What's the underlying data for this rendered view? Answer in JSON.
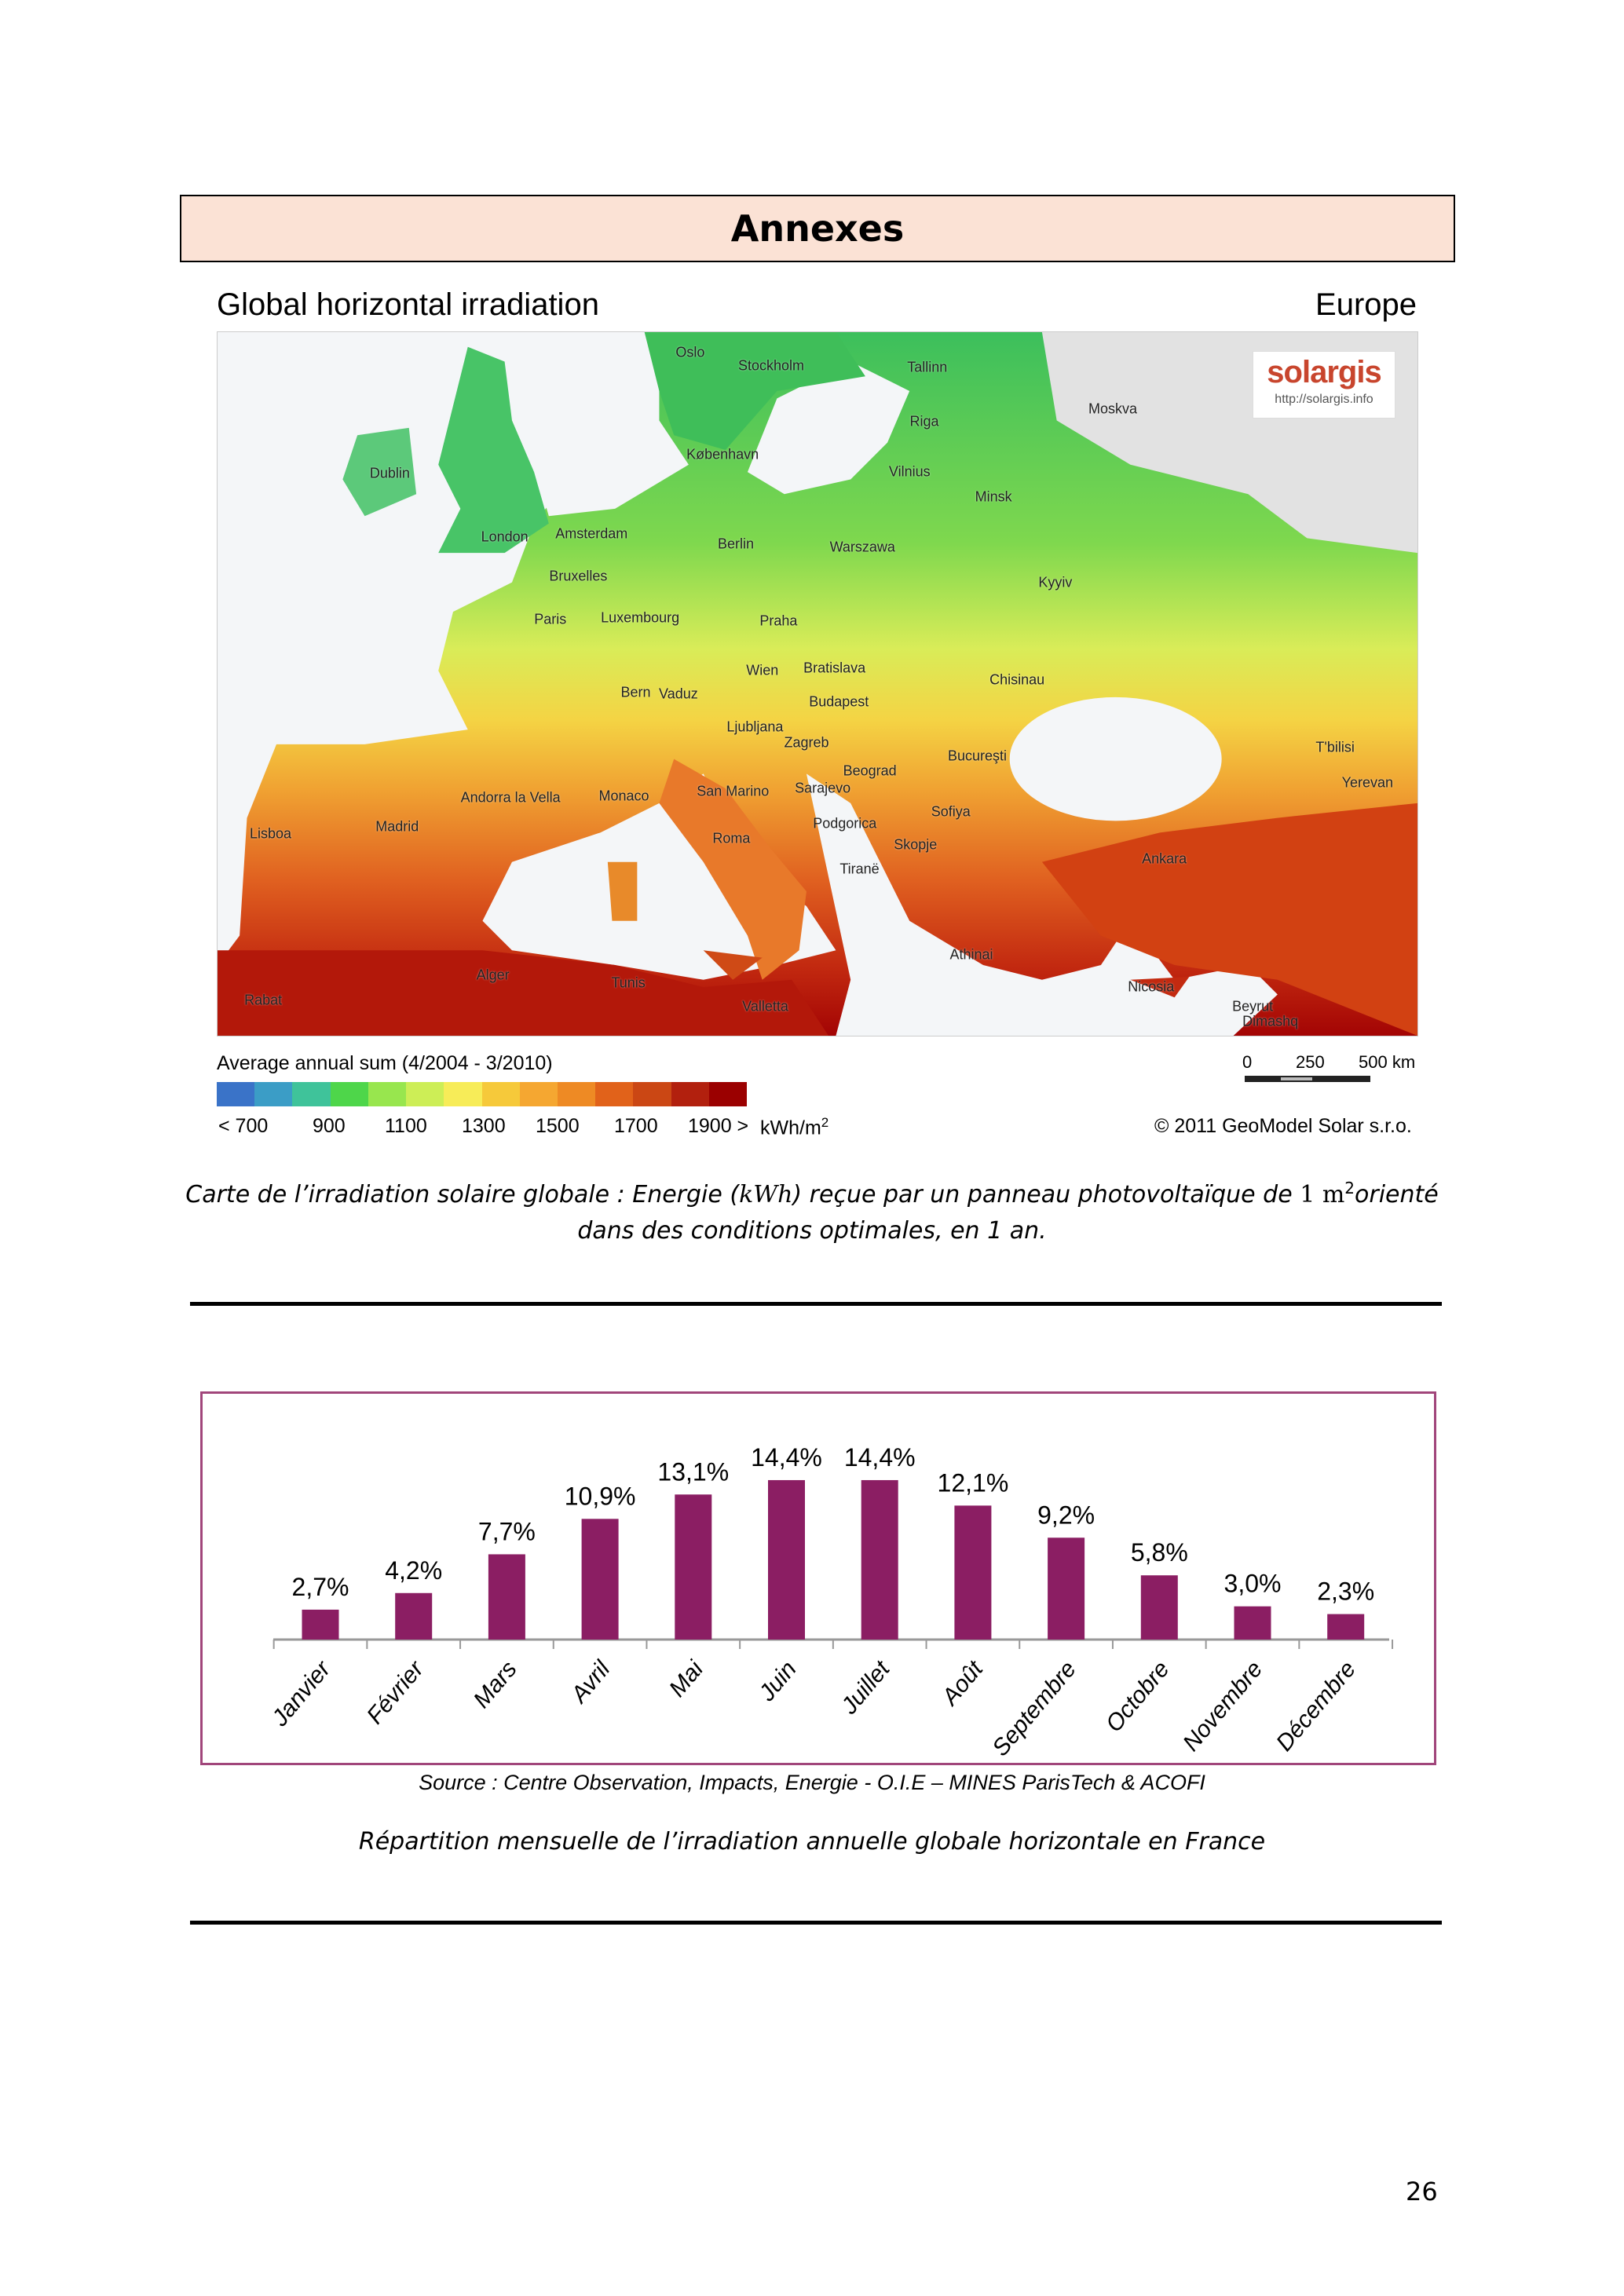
{
  "header": {
    "title": "Annexes"
  },
  "map": {
    "title": "Global horizontal irradiation",
    "region": "Europe",
    "logo_brand": "solargis",
    "logo_url": "http://solargis.info",
    "cities": [
      "Oslo",
      "Stockholm",
      "Tallinn",
      "Moskva",
      "Riga",
      "København",
      "Vilnius",
      "Dublin",
      "Minsk",
      "London",
      "Amsterdam",
      "Berlin",
      "Warszawa",
      "Bruxelles",
      "Kyyiv",
      "Paris",
      "Luxembourg",
      "Praha",
      "Wien",
      "Bratislava",
      "Chisinau",
      "Bern",
      "Vaduz",
      "Budapest",
      "Ljubljana",
      "Zagreb",
      "T'bilisi",
      "Beograd",
      "Bucureşti",
      "San Marino",
      "Sarajevo",
      "Andorra la Vella",
      "Monaco",
      "Yerevan",
      "Madrid",
      "Sofiya",
      "Podgorica",
      "Lisboa",
      "Roma",
      "Skopje",
      "Ankara",
      "Tiranë",
      "Athinai",
      "Alger",
      "Tunis",
      "Nicosia",
      "Beyrut",
      "Dimashq",
      "Rabat",
      "Valletta"
    ],
    "legend_title": "Average annual sum (4/2004 - 3/2010)",
    "legend_colors": [
      "#3a73c8",
      "#3b9dc6",
      "#3fc39a",
      "#4ed64a",
      "#98e64e",
      "#cdee56",
      "#f7ec58",
      "#f6c93a",
      "#f5a731",
      "#ee8a24",
      "#e1621a",
      "#cb4714",
      "#b2200e",
      "#9b0000"
    ],
    "legend_ticks": [
      "< 700",
      "900",
      "1100",
      "1300",
      "1500",
      "1700",
      "1900 >"
    ],
    "legend_unit": "kWh/m",
    "legend_unit_sup": "2",
    "scale_labels": [
      "0",
      "250",
      "500 km"
    ],
    "copyright": "© 2011 GeoModel Solar s.r.o."
  },
  "caption1": {
    "part1": "Carte de l’irradiation solaire globale : Energie (",
    "unit": "kWh",
    "part2": ") reçue par un panneau photovoltaïque de ",
    "area": "1 m",
    "sup": "2",
    "part3": "orienté dans des conditions optimales, en 1 an."
  },
  "chart_data": {
    "type": "bar",
    "title": "",
    "categories": [
      "Janvier",
      "Février",
      "Mars",
      "Avril",
      "Mai",
      "Juin",
      "Juillet",
      "Août",
      "Septembre",
      "Octobre",
      "Novembre",
      "Décembre"
    ],
    "values": [
      2.7,
      4.2,
      7.7,
      10.9,
      13.1,
      14.4,
      14.4,
      12.1,
      9.2,
      5.8,
      3.0,
      2.3
    ],
    "labels": [
      "2,7%",
      "4,2%",
      "7,7%",
      "10,9%",
      "13,1%",
      "14,4%",
      "14,4%",
      "12,1%",
      "9,2%",
      "5,8%",
      "3,0%",
      "2,3%"
    ],
    "xlabel": "",
    "ylabel": "",
    "ylim": [
      0,
      16
    ],
    "bar_color": "#8b1e63",
    "grid": false
  },
  "source": "Source : Centre Observation, Impacts, Energie - O.I.E – MINES ParisTech & ACOFI",
  "caption2": "Répartition mensuelle de l’irradiation annuelle globale horizontale en France",
  "page_number": "26"
}
